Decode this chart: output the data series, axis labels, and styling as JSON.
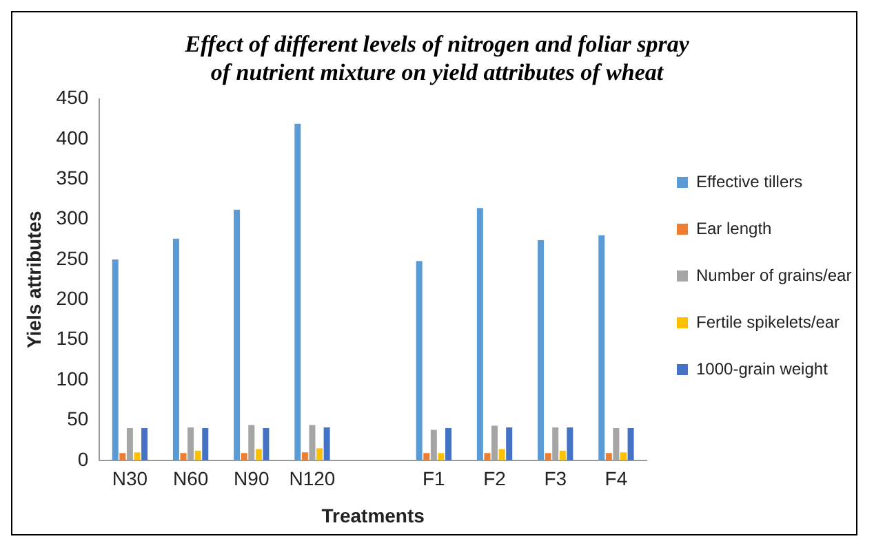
{
  "chart_data": {
    "type": "bar",
    "title": "Effect of different levels of nitrogen and foliar spray of nutrient mixture on yield attributes of wheat",
    "xlabel": "Treatments",
    "ylabel": "Yiels attributes",
    "categories": [
      "N30",
      "N60",
      "N90",
      "N120",
      null,
      "F1",
      "F2",
      "F3",
      "F4"
    ],
    "series": [
      {
        "name": "Effective tillers",
        "color": "#5b9bd5",
        "values": [
          250,
          276,
          312,
          419,
          null,
          248,
          314,
          274,
          280
        ]
      },
      {
        "name": "Ear length",
        "color": "#ed7d31",
        "values": [
          9,
          9,
          9,
          10,
          null,
          9,
          9,
          9,
          9
        ]
      },
      {
        "name": "Number of grains/ear",
        "color": "#a5a5a5",
        "values": [
          40,
          41,
          44,
          44,
          null,
          38,
          43,
          41,
          40
        ]
      },
      {
        "name": "Fertile spikelets/ear",
        "color": "#ffc000",
        "values": [
          10,
          12,
          14,
          15,
          null,
          9,
          14,
          12,
          10
        ]
      },
      {
        "name": "1000-grain weight",
        "color": "#4472c4",
        "values": [
          40,
          40,
          40,
          41,
          null,
          40,
          41,
          41,
          40
        ]
      }
    ],
    "ylim": [
      0,
      450
    ],
    "yticks": [
      0,
      50,
      100,
      150,
      200,
      250,
      300,
      350,
      400,
      450
    ],
    "grid": false,
    "legend": "right"
  }
}
